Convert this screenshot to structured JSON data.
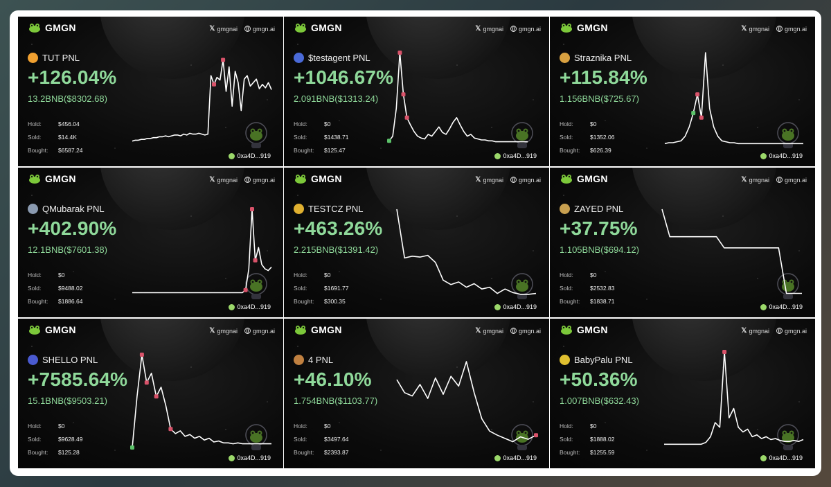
{
  "brand": {
    "name": "GMGN",
    "x_handle": "gmgnai",
    "site": "gmgn.ai"
  },
  "colors": {
    "profit": "#8fd99a",
    "line": "#ffffff",
    "buy_marker": "#5cc26a",
    "sell_marker": "#d9536a"
  },
  "cards": [
    {
      "token": "TUT",
      "title": "TUT PNL",
      "icon_color": "#f0a030",
      "pct": "+126.04%",
      "amount": "13.2BNB($8302.68)",
      "stats": [
        {
          "label": "Hold:",
          "value": "$456.04"
        },
        {
          "label": "Sold:",
          "value": "$14.4K"
        },
        {
          "label": "Bought:",
          "value": "$6587.24"
        }
      ],
      "wallet": "0xa4D...919",
      "series": [
        0.05,
        0.06,
        0.06,
        0.07,
        0.07,
        0.08,
        0.08,
        0.09,
        0.09,
        0.1,
        0.1,
        0.11,
        0.1,
        0.11,
        0.12,
        0.12,
        0.11,
        0.13,
        0.12,
        0.14,
        0.13,
        0.13,
        0.14,
        0.13,
        0.12,
        0.13,
        0.8,
        0.7,
        0.78,
        0.75,
        0.98,
        0.62,
        0.9,
        0.45,
        0.85,
        0.72,
        0.4,
        0.76,
        0.8,
        0.68,
        0.72,
        0.76,
        0.65,
        0.7,
        0.66,
        0.72,
        0.64
      ],
      "markers": [
        {
          "i": 27,
          "type": "sell"
        },
        {
          "i": 30,
          "type": "sell"
        }
      ]
    },
    {
      "token": "$testagent",
      "title": "$testagent PNL",
      "icon_color": "#4a6ad8",
      "pct": "+1046.67%",
      "amount": "2.091BNB($1313.24)",
      "stats": [
        {
          "label": "Hold:",
          "value": "$0"
        },
        {
          "label": "Sold:",
          "value": "$1438.71"
        },
        {
          "label": "Bought:",
          "value": "$125.47"
        }
      ],
      "wallet": "0xa4D...919",
      "series": [
        0.05,
        0.1,
        0.4,
        1.0,
        0.55,
        0.3,
        0.22,
        0.15,
        0.1,
        0.08,
        0.07,
        0.12,
        0.1,
        0.15,
        0.2,
        0.14,
        0.12,
        0.18,
        0.25,
        0.3,
        0.22,
        0.15,
        0.1,
        0.12,
        0.08,
        0.07,
        0.06,
        0.06,
        0.05,
        0.05,
        0.04,
        0.04,
        0.04,
        0.04,
        0.04,
        0.04,
        0.04,
        0.04,
        0.04,
        0.04
      ],
      "markers": [
        {
          "i": 0,
          "type": "buy"
        },
        {
          "i": 3,
          "type": "sell"
        },
        {
          "i": 4,
          "type": "sell"
        },
        {
          "i": 5,
          "type": "sell"
        }
      ]
    },
    {
      "token": "Straznika",
      "title": "Straznika PNL",
      "icon_color": "#d8a040",
      "pct": "+115.84%",
      "amount": "1.156BNB($725.67)",
      "stats": [
        {
          "label": "Hold:",
          "value": "$0"
        },
        {
          "label": "Sold:",
          "value": "$1352.06"
        },
        {
          "label": "Bought:",
          "value": "$626.39"
        }
      ],
      "wallet": "0xa4D...919",
      "series": [
        0.02,
        0.03,
        0.03,
        0.04,
        0.05,
        0.1,
        0.2,
        0.35,
        0.55,
        0.3,
        1.0,
        0.4,
        0.2,
        0.1,
        0.05,
        0.04,
        0.03,
        0.03,
        0.02,
        0.02,
        0.02,
        0.02,
        0.02,
        0.02,
        0.02,
        0.02,
        0.02,
        0.02,
        0.02,
        0.02,
        0.02,
        0.02,
        0.02,
        0.02,
        0.02
      ],
      "markers": [
        {
          "i": 7,
          "type": "buy"
        },
        {
          "i": 8,
          "type": "sell"
        },
        {
          "i": 9,
          "type": "sell"
        }
      ]
    },
    {
      "token": "QMubarak",
      "title": "QMubarak PNL",
      "icon_color": "#8a9ab0",
      "pct": "+402.90%",
      "amount": "12.1BNB($7601.38)",
      "stats": [
        {
          "label": "Hold:",
          "value": "$0"
        },
        {
          "label": "Sold:",
          "value": "$9488.02"
        },
        {
          "label": "Bought:",
          "value": "$1886.64"
        }
      ],
      "wallet": "0xa4D...919",
      "series": [
        0.02,
        0.02,
        0.02,
        0.02,
        0.02,
        0.02,
        0.02,
        0.02,
        0.02,
        0.02,
        0.02,
        0.02,
        0.02,
        0.02,
        0.02,
        0.02,
        0.02,
        0.02,
        0.02,
        0.02,
        0.02,
        0.02,
        0.02,
        0.02,
        0.02,
        0.02,
        0.02,
        0.02,
        0.02,
        0.02,
        0.02,
        0.02,
        0.02,
        0.02,
        0.02,
        0.05,
        0.3,
        1.0,
        0.4,
        0.55,
        0.35,
        0.3,
        0.28,
        0.32
      ],
      "markers": [
        {
          "i": 35,
          "type": "sell"
        },
        {
          "i": 37,
          "type": "sell"
        },
        {
          "i": 38,
          "type": "sell"
        }
      ]
    },
    {
      "token": "TESTCZ",
      "title": "TESTCZ PNL",
      "icon_color": "#e0b030",
      "pct": "+463.26%",
      "amount": "2.215BNB($1391.42)",
      "stats": [
        {
          "label": "Hold:",
          "value": "$0"
        },
        {
          "label": "Sold:",
          "value": "$1691.77"
        },
        {
          "label": "Bought:",
          "value": "$300.35"
        }
      ],
      "wallet": "0xa4D...919",
      "series": [
        1.0,
        0.45,
        0.47,
        0.46,
        0.48,
        0.4,
        0.2,
        0.15,
        0.18,
        0.12,
        0.16,
        0.1,
        0.12,
        0.05,
        0.1,
        0.06,
        0.04,
        0.04,
        0.05
      ],
      "markers": []
    },
    {
      "token": "ZAYED",
      "title": "ZAYED PNL",
      "icon_color": "#c8a050",
      "pct": "+37.75%",
      "amount": "1.105BNB($694.12)",
      "stats": [
        {
          "label": "Hold:",
          "value": "$0"
        },
        {
          "label": "Sold:",
          "value": "$2532.83"
        },
        {
          "label": "Bought:",
          "value": "$1838.71"
        }
      ],
      "wallet": "0xa4D...919",
      "series": [
        1.0,
        0.68,
        0.68,
        0.68,
        0.68,
        0.68,
        0.68,
        0.68,
        0.55,
        0.55,
        0.55,
        0.55,
        0.55,
        0.55,
        0.55,
        0.55,
        0.02,
        0.02,
        0.02
      ],
      "markers": []
    },
    {
      "token": "SHELLO",
      "title": "SHELLO PNL",
      "icon_color": "#4a5ad0",
      "pct": "+7585.64%",
      "amount": "15.1BNB($9503.21)",
      "stats": [
        {
          "label": "Hold:",
          "value": "$0"
        },
        {
          "label": "Sold:",
          "value": "$9628.49"
        },
        {
          "label": "Bought:",
          "value": "$125.28"
        }
      ],
      "wallet": "0xa4D...919",
      "series": [
        0.0,
        0.55,
        1.0,
        0.7,
        0.8,
        0.55,
        0.65,
        0.45,
        0.2,
        0.15,
        0.18,
        0.12,
        0.14,
        0.1,
        0.12,
        0.08,
        0.1,
        0.06,
        0.07,
        0.05,
        0.05,
        0.04,
        0.05,
        0.04,
        0.04,
        0.04,
        0.04,
        0.04,
        0.04,
        0.04
      ],
      "markers": [
        {
          "i": 0,
          "type": "buy"
        },
        {
          "i": 2,
          "type": "sell"
        },
        {
          "i": 3,
          "type": "sell"
        },
        {
          "i": 5,
          "type": "sell"
        },
        {
          "i": 8,
          "type": "sell"
        }
      ]
    },
    {
      "token": "4",
      "title": "4 PNL",
      "icon_color": "#c08040",
      "pct": "+46.10%",
      "amount": "1.754BNB($1103.77)",
      "stats": [
        {
          "label": "Hold:",
          "value": "$0"
        },
        {
          "label": "Sold:",
          "value": "$3497.64"
        },
        {
          "label": "Bought:",
          "value": "$2393.87"
        }
      ],
      "wallet": "0xa4D...919",
      "series": [
        0.78,
        0.62,
        0.58,
        0.72,
        0.55,
        0.8,
        0.6,
        0.82,
        0.7,
        1.0,
        0.62,
        0.3,
        0.15,
        0.1,
        0.06,
        0.02,
        0.08,
        0.05,
        0.1
      ],
      "markers": [
        {
          "i": 18,
          "type": "sell"
        }
      ]
    },
    {
      "token": "BabyPalu",
      "title": "BabyPalu PNL",
      "icon_color": "#e0c030",
      "pct": "+50.36%",
      "amount": "1.007BNB($632.43)",
      "stats": [
        {
          "label": "Hold:",
          "value": "$0"
        },
        {
          "label": "Sold:",
          "value": "$1888.02"
        },
        {
          "label": "Bought:",
          "value": "$1255.59"
        }
      ],
      "wallet": "0xa4D...919",
      "series": [
        0.02,
        0.02,
        0.02,
        0.02,
        0.02,
        0.02,
        0.02,
        0.02,
        0.02,
        0.04,
        0.1,
        0.25,
        0.2,
        1.0,
        0.3,
        0.4,
        0.2,
        0.15,
        0.18,
        0.1,
        0.12,
        0.08,
        0.1,
        0.07,
        0.08,
        0.06,
        0.05,
        0.05,
        0.06,
        0.05,
        0.07
      ],
      "markers": [
        {
          "i": 13,
          "type": "sell"
        }
      ]
    }
  ]
}
